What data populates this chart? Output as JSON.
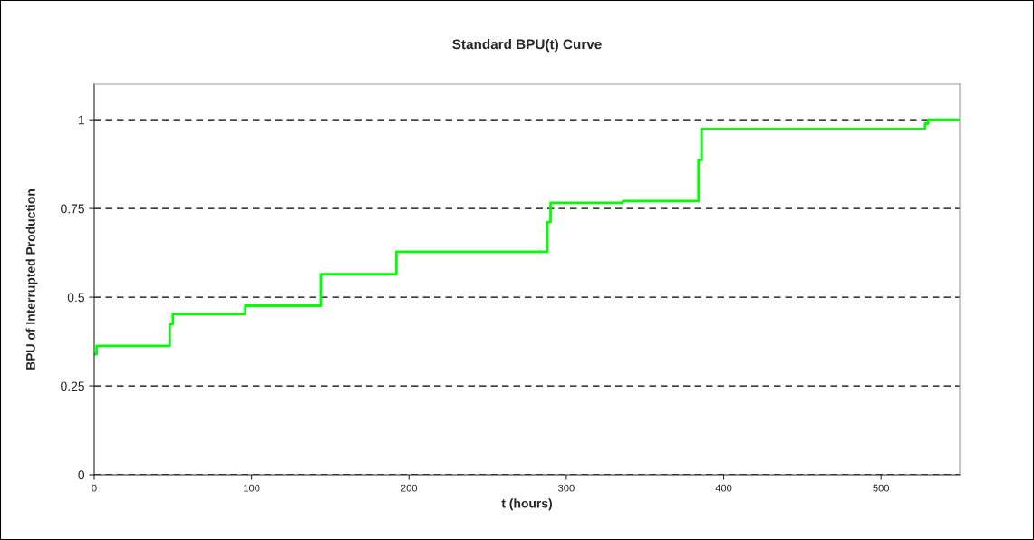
{
  "chart_data": {
    "type": "step",
    "title": "Standard BPU(t) Curve",
    "xlabel": "t (hours)",
    "ylabel": "BPU of Interrupted Production",
    "series": [
      {
        "color": "#00ff00",
        "x": [
          0,
          1.5,
          48,
          50,
          96,
          144,
          192,
          288,
          290,
          336,
          384,
          386,
          528,
          530,
          550
        ],
        "values": [
          0.339,
          0.363,
          0.424,
          0.453,
          0.476,
          0.565,
          0.628,
          0.712,
          0.766,
          0.771,
          0.886,
          0.974,
          0.989,
          1.0,
          1.0
        ]
      }
    ],
    "xlim": [
      0,
      550
    ],
    "xticks": [
      0,
      100,
      200,
      300,
      400,
      500
    ],
    "ylim": [
      0,
      1.1
    ],
    "yticks": [
      0,
      0.25,
      0.5,
      0.75,
      1
    ],
    "grid": "y",
    "line_style": "solid",
    "marker": "none"
  }
}
